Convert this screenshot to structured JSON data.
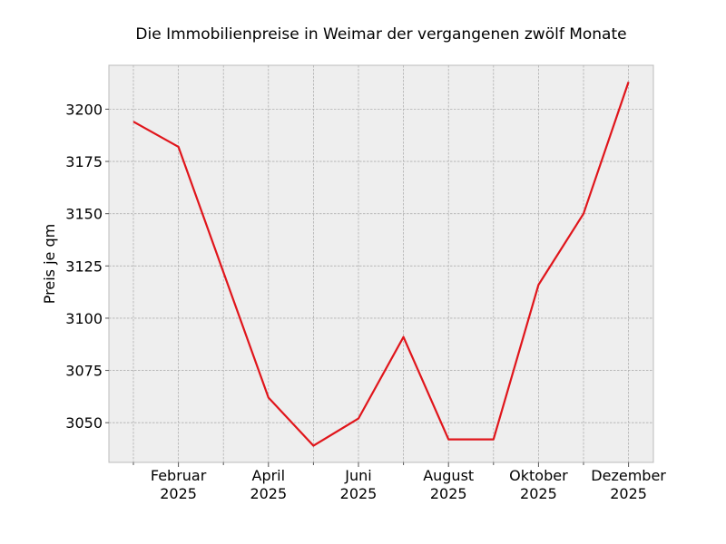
{
  "chart_data": {
    "type": "line",
    "title": "Die Immobilienpreise in Weimar der vergangenen zwölf Monate",
    "xlabel": "",
    "ylabel": "Preis je qm",
    "x": [
      "2025-01",
      "2025-02",
      "2025-03",
      "2025-04",
      "2025-05",
      "2025-06",
      "2025-07",
      "2025-08",
      "2025-09",
      "2025-10",
      "2025-11",
      "2025-12"
    ],
    "series": [
      {
        "values": [
          3194,
          3182,
          3122,
          3062,
          3039,
          3052,
          3091,
          3042,
          3042,
          3116,
          3150,
          3213
        ],
        "color": "#e0151b"
      }
    ],
    "x_major_ticks": [
      {
        "x": "2025-02",
        "label": [
          "Februar",
          "2025"
        ]
      },
      {
        "x": "2025-04",
        "label": [
          "April",
          "2025"
        ]
      },
      {
        "x": "2025-06",
        "label": [
          "Juni",
          "2025"
        ]
      },
      {
        "x": "2025-08",
        "label": [
          "August",
          "2025"
        ]
      },
      {
        "x": "2025-10",
        "label": [
          "Oktober",
          "2025"
        ]
      },
      {
        "x": "2025-12",
        "label": [
          "Dezember",
          "2025"
        ]
      }
    ],
    "x_minor_ticks": [
      "2025-01",
      "2025-03",
      "2025-05",
      "2025-07",
      "2025-09",
      "2025-11"
    ],
    "ylim": [
      3031,
      3221
    ],
    "yticks": [
      3050,
      3075,
      3100,
      3125,
      3150,
      3175,
      3200
    ],
    "grid": true,
    "background": "#eeeeee"
  }
}
